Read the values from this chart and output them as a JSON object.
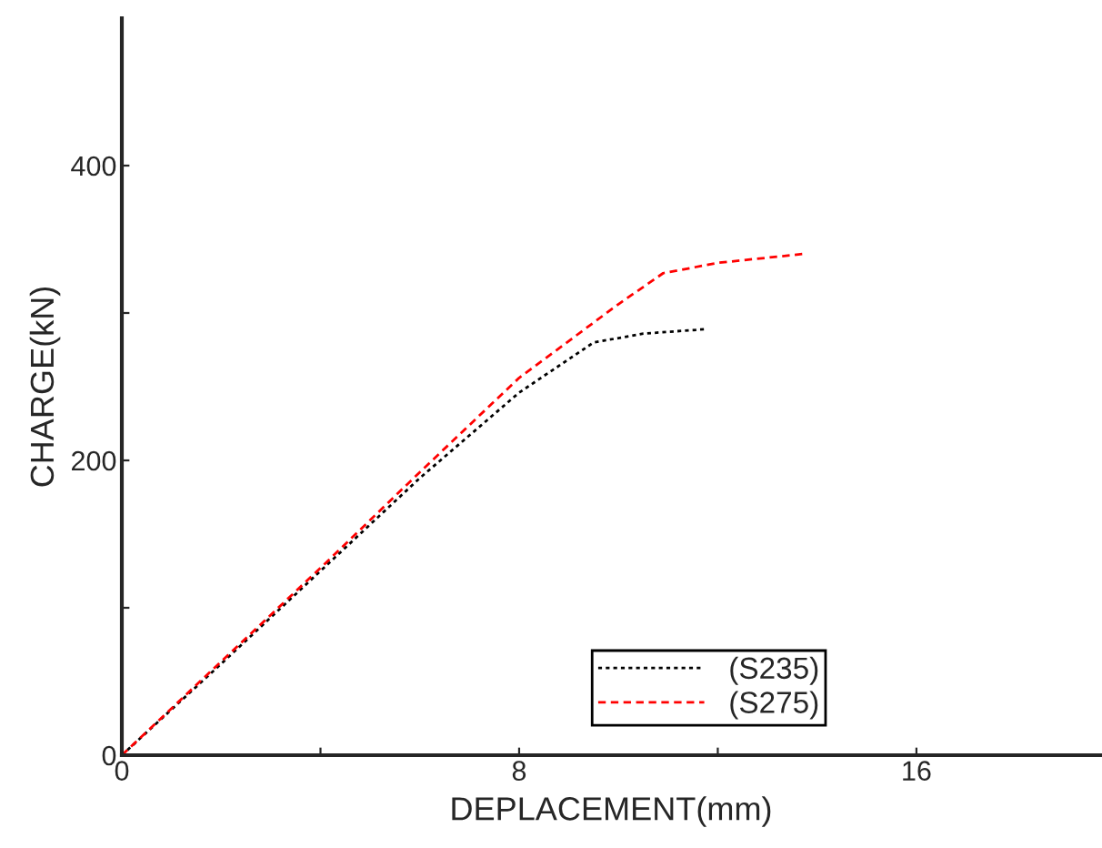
{
  "chart_data": {
    "type": "line",
    "xlabel": "DEPLACEMENT(mm)",
    "ylabel": "CHARGE(kN)",
    "series": [
      {
        "name": "(S235)",
        "color": "#000000",
        "line_style": "dotted",
        "x": [
          0,
          2,
          4,
          6,
          8,
          9.5,
          10.5,
          11.75
        ],
        "values": [
          0,
          62,
          125,
          188,
          246,
          280,
          286,
          289
        ]
      },
      {
        "name": "(S275)",
        "color": "#ff0000",
        "line_style": "dashed",
        "x": [
          0,
          4,
          6,
          8,
          10,
          10.9,
          12,
          13.7
        ],
        "values": [
          0,
          127,
          192,
          256,
          306,
          327,
          334,
          340
        ]
      }
    ],
    "xlim": [
      0,
      19.7
    ],
    "ylim": [
      0,
      500
    ],
    "xticks": [
      0,
      {
        "value": 4,
        "label": null
      },
      8,
      {
        "value": 12,
        "label": null
      },
      16
    ],
    "yticks": [
      0,
      {
        "value": 100,
        "label": null
      },
      200,
      {
        "value": 300,
        "label": null
      },
      400
    ],
    "grid": false,
    "legend": "bottom",
    "marker": "none"
  }
}
